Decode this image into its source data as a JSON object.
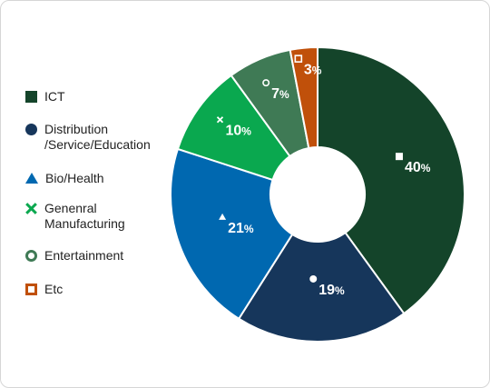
{
  "chart_data": {
    "type": "pie",
    "donut": true,
    "categories": [
      "ICT",
      "Distribution\n/Service/Education",
      "Bio/Health",
      "Genenral\nManufacturing",
      "Entertainment",
      "Etc"
    ],
    "values": [
      40,
      19,
      21,
      10,
      7,
      3
    ],
    "value_suffix": "%",
    "colors": [
      "#14442a",
      "#16365b",
      "#0068b0",
      "#0aa84f",
      "#3f7a55",
      "#c0500a"
    ],
    "markers": [
      "square",
      "circle",
      "triangle",
      "x",
      "ring",
      "hollow-square"
    ],
    "legend_position": "left"
  },
  "legend": {
    "items": [
      {
        "label": "ICT"
      },
      {
        "label_lines": [
          "Distribution",
          "/Service/Education"
        ]
      },
      {
        "label": "Bio/Health"
      },
      {
        "label_lines": [
          "Genenral",
          "Manufacturing"
        ]
      },
      {
        "label": "Entertainment"
      },
      {
        "label": "Etc"
      }
    ]
  }
}
